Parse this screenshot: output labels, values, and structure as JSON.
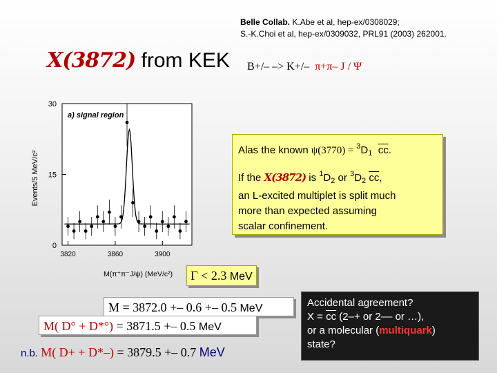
{
  "reference": {
    "line1_bold": "Belle Collab.",
    "line1_rest": " K.Abe et al, hep-ex/0308029;",
    "line2": "S.-K.Choi et al, hep-ex/0309032, PRL91 (2003) 262001."
  },
  "title": {
    "symbol": "X(3872)",
    "text": " from KEK"
  },
  "decay": {
    "initial": "B+/–",
    "arrow": " –> ",
    "kaon": "K+/–",
    "pions": "π+π–",
    "final": "J / Ψ"
  },
  "plot": {
    "panel_label": "a) signal region",
    "ylabel": "Events/5 MeV/c²",
    "xlabel": "M(π⁺π⁻J/ψ)  (MeV/c²)"
  },
  "chart_data": {
    "type": "histogram",
    "x": [
      3820,
      3825,
      3830,
      3835,
      3840,
      3845,
      3850,
      3855,
      3860,
      3865,
      3870,
      3875,
      3880,
      3885,
      3890,
      3895,
      3900,
      3905,
      3910,
      3915,
      3920
    ],
    "values": [
      4,
      3,
      5,
      3,
      4,
      6,
      5,
      7,
      4,
      6,
      26,
      9,
      5,
      4,
      6,
      3,
      5,
      4,
      6,
      3,
      5
    ],
    "fit_peak": 3872,
    "xticks": [
      3820,
      3860,
      3900
    ],
    "yticks": [
      0,
      15,
      30
    ],
    "xlim": [
      3815,
      3925
    ],
    "ylim": [
      0,
      30
    ]
  },
  "explanation": {
    "line1_prefix": "Alas the known ",
    "psi_state": "ψ(3770)",
    "equals": " = ",
    "line1_sup": "3",
    "line1_state": "D",
    "line1_sub": "1",
    "line1_cc": "cc",
    "line2_prefix": "If the ",
    "line2_x": "X(3872)",
    "line2_is": " is ",
    "line2_sup1": "1",
    "line2_state1": "D",
    "line2_sub1": "2",
    "line2_or": " or ",
    "line2_sup2": "3",
    "line2_state2": "D",
    "line2_sub2": "2",
    "line2_cc": "cc",
    "line3": "an L-excited multiplet is split much",
    "line4": "more than expected assuming",
    "line5": "scalar confinement."
  },
  "gamma": {
    "text": "Γ < 2.3",
    "unit": "MeV"
  },
  "mass": {
    "text": "M =  3872.0 +– 0.6 +– 0.5 ",
    "unit": "MeV"
  },
  "dstar": {
    "label": "M( D° + D*°)",
    "value": " =  3871.5 +– 0.5 ",
    "unit": "MeV"
  },
  "nb": {
    "prefix": "n.b. ",
    "label": "M( D+ + D*–)",
    "value": " =  3879.5 +– 0.7 ",
    "unit": "MeV"
  },
  "agreement": {
    "line1": "Accidental agreement?",
    "line2_prefix": "X = ",
    "line2_cc": "cc",
    "line2_rest": "  (2–+ or 2–– or …),",
    "line3_prefix": "or a molecular (",
    "line3_mq": "multiquark",
    "line3_suffix": ")",
    "line4": "state?"
  }
}
